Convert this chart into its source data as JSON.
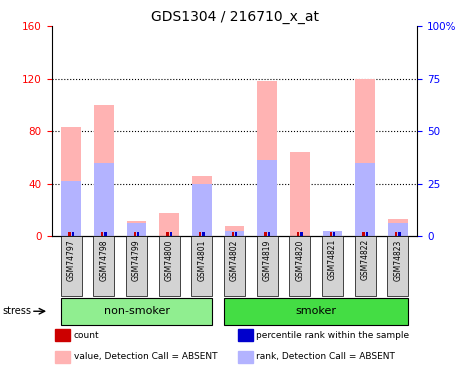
{
  "title": "GDS1304 / 216710_x_at",
  "samples": [
    "GSM74797",
    "GSM74798",
    "GSM74799",
    "GSM74800",
    "GSM74801",
    "GSM74802",
    "GSM74819",
    "GSM74820",
    "GSM74821",
    "GSM74822",
    "GSM74823"
  ],
  "value_absent": [
    83,
    100,
    12,
    18,
    46,
    8,
    118,
    64,
    0,
    120,
    13
  ],
  "rank_absent": [
    42,
    56,
    10,
    0,
    40,
    4,
    58,
    0,
    4,
    56,
    10
  ],
  "count_val": [
    2,
    2,
    2,
    2,
    2,
    2,
    2,
    2,
    2,
    2,
    2
  ],
  "percentile_val": [
    2,
    2,
    2,
    2,
    2,
    2,
    2,
    2,
    2,
    2,
    2
  ],
  "non_smoker_indices": [
    0,
    1,
    2,
    3,
    4
  ],
  "smoker_indices": [
    5,
    6,
    7,
    8,
    9,
    10
  ],
  "ylim_left": [
    0,
    160
  ],
  "ylim_right": [
    0,
    100
  ],
  "yticks_left": [
    0,
    40,
    80,
    120,
    160
  ],
  "yticks_left_labels": [
    "0",
    "40",
    "80",
    "120",
    "160"
  ],
  "yticks_right": [
    0,
    25,
    50,
    75,
    100
  ],
  "yticks_right_labels": [
    "0",
    "25",
    "50",
    "75",
    "100%"
  ],
  "color_value_absent": "#ffb3b3",
  "color_rank_absent": "#b3b3ff",
  "color_count": "#cc0000",
  "color_percentile": "#0000cc",
  "non_smoker_color": "#90ee90",
  "smoker_color": "#44dd44",
  "label_bg_color": "#d3d3d3",
  "bar_width": 0.6,
  "grid_color": "black"
}
